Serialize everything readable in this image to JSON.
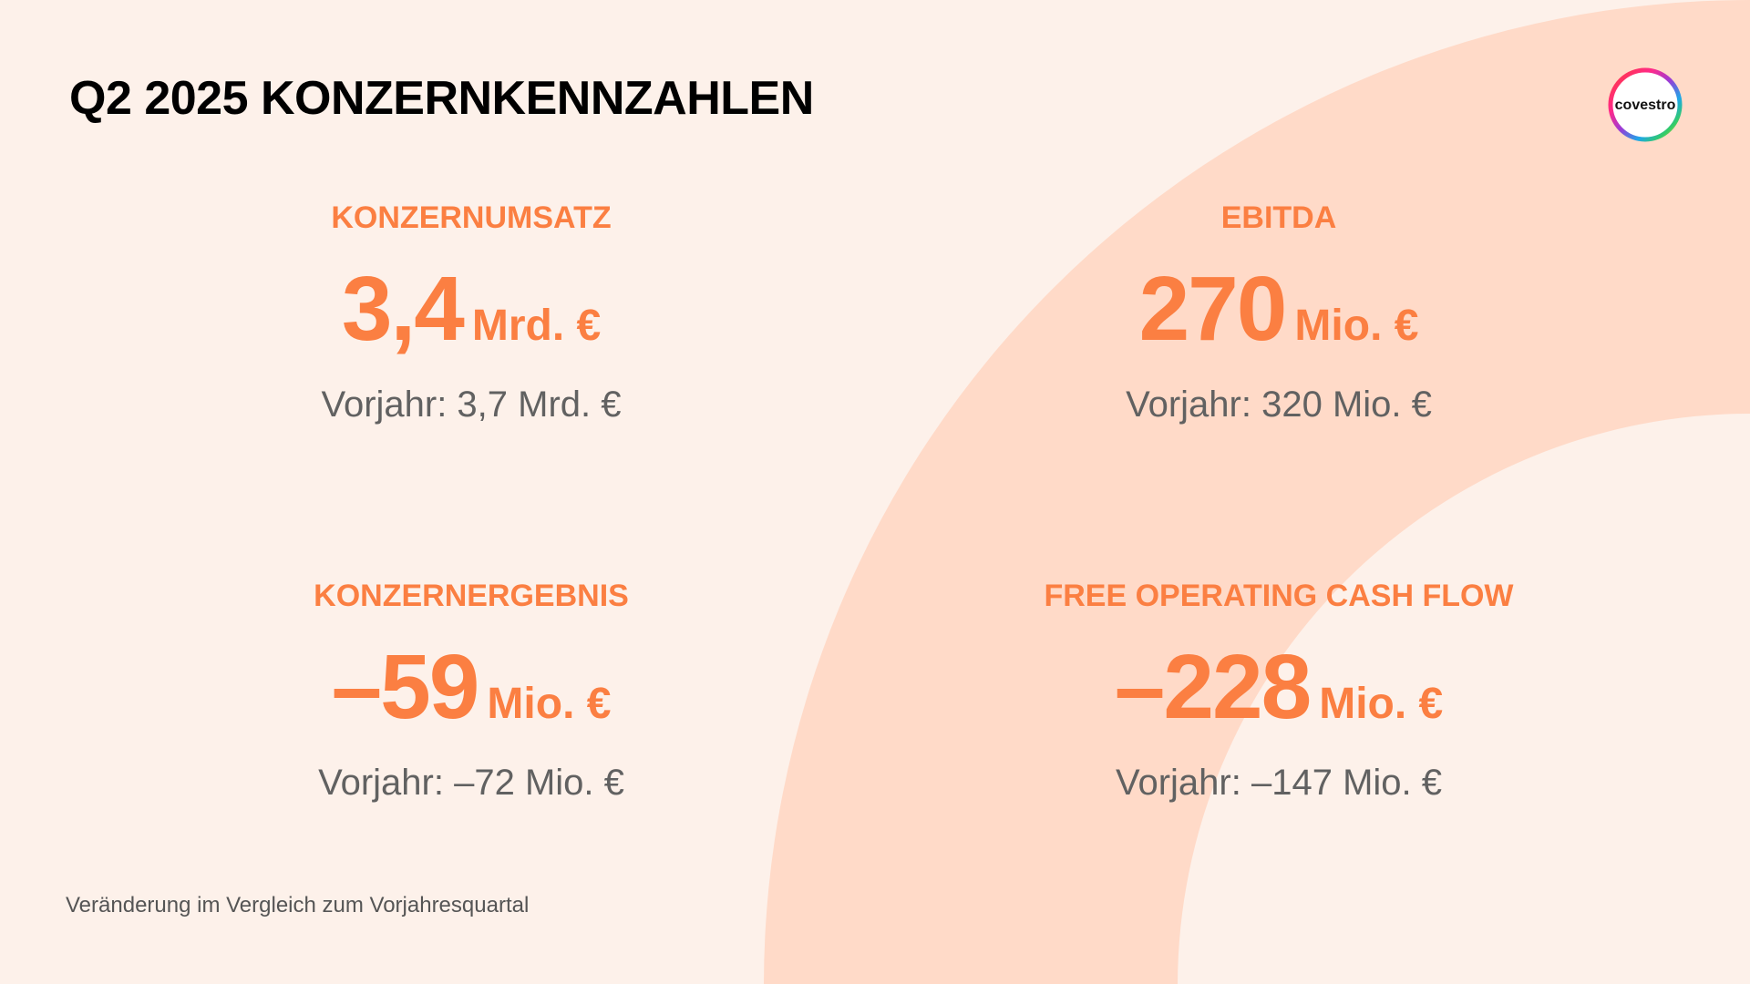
{
  "page": {
    "title": "Q2 2025 KONZERNKENNZAHLEN",
    "footnote": "Veränderung im Vergleich zum Vorjahresquartal"
  },
  "logo": {
    "text": "covestro",
    "icon": "covestro-ring-logo"
  },
  "kpis": [
    {
      "label": "KONZERNUMSATZ",
      "value": "3,4",
      "unit": "Mrd. €",
      "previous": "Vorjahr: 3,7 Mrd. €"
    },
    {
      "label": "EBITDA",
      "value": "270",
      "unit": "Mio. €",
      "previous": "Vorjahr: 320 Mio. €"
    },
    {
      "label": "KONZERNERGEBNIS",
      "value": "–59",
      "unit": "Mio. €",
      "previous": "Vorjahr: –72 Mio. €"
    },
    {
      "label": "FREE OPERATING CASH FLOW",
      "value": "–228",
      "unit": "Mio. €",
      "previous": "Vorjahr: –147 Mio. €"
    }
  ],
  "colors": {
    "background": "#fdf1ea",
    "arc": "#ffdac8",
    "accent": "#fb7f42",
    "secondary_text": "#616161",
    "title": "#000000"
  }
}
